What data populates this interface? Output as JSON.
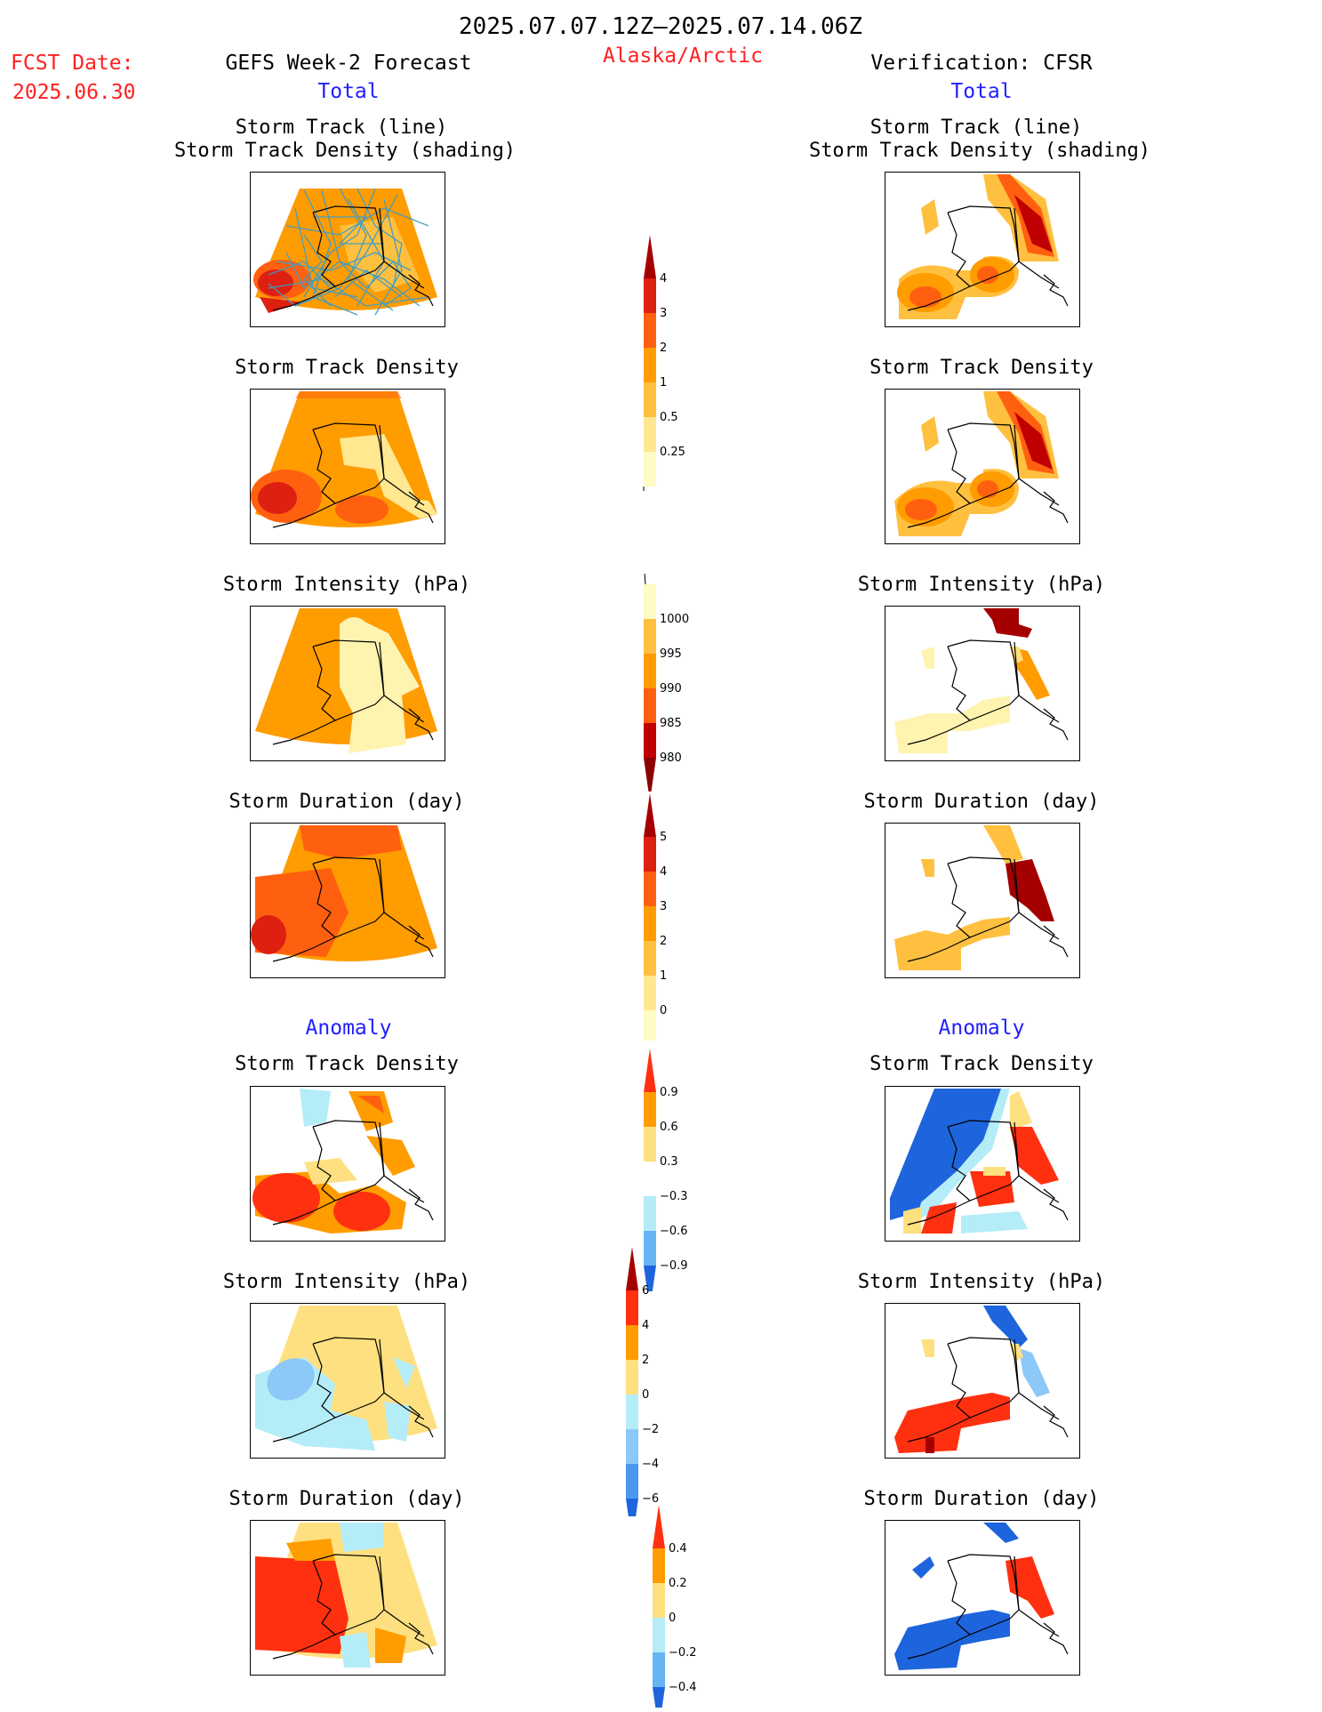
{
  "header": {
    "period": "2025.07.07.12Z–2025.07.14.06Z",
    "fcst_label": "FCST Date:",
    "fcst_date": "2025.06.30",
    "forecast_title": "GEFS Week-2 Forecast",
    "region": "Alaska/Arctic",
    "verification_title": "Verification: CFSR"
  },
  "sections": {
    "total": "Total",
    "anomaly": "Anomaly"
  },
  "titles": {
    "track_line": "Storm Track (line)",
    "track_shading": "Storm Track Density (shading)",
    "density": "Storm Track Density",
    "intensity": "Storm Intensity (hPa)",
    "duration": "Storm Duration (day)"
  },
  "colorbars": [
    {
      "id": "total-density",
      "arrow": "top",
      "labels": [
        "4",
        "3",
        "2",
        "1",
        "0.5",
        "0.25"
      ],
      "colors": [
        "#a50000",
        "#dd2010",
        "#ff6010",
        "#ff9c00",
        "#ffc040",
        "#ffe890",
        "#fffbc4"
      ]
    },
    {
      "id": "total-intensity",
      "arrow": "bottom",
      "labels": [
        "1000",
        "995",
        "990",
        "985",
        "980"
      ],
      "colors": [
        "#fffbc4",
        "#ffc040",
        "#ff9c00",
        "#ff6010",
        "#c00000",
        "#8b0000"
      ]
    },
    {
      "id": "total-duration",
      "arrow": "top",
      "labels": [
        "5",
        "4",
        "3",
        "2",
        "1",
        "0"
      ],
      "colors": [
        "#a50000",
        "#dd2010",
        "#ff6010",
        "#ff9c00",
        "#ffc040",
        "#ffe890",
        "#fffbc4"
      ]
    },
    {
      "id": "anom-density",
      "arrow": "both",
      "labels": [
        "0.9",
        "0.6",
        "0.3",
        "−0.3",
        "−0.6",
        "−0.9"
      ],
      "colors": [
        "#ff3010",
        "#ff9c00",
        "#ffe080",
        "#ffffff",
        "#b4ecf8",
        "#66b4f4",
        "#1e64dc"
      ]
    },
    {
      "id": "anom-intensity",
      "arrow": "both",
      "labels": [
        "6",
        "4",
        "2",
        "0",
        "−2",
        "−4",
        "−6"
      ],
      "colors": [
        "#a50000",
        "#ff3010",
        "#ff9c00",
        "#ffe080",
        "#b4ecf8",
        "#8cc8f8",
        "#4c98f0",
        "#1e64dc"
      ]
    },
    {
      "id": "anom-duration",
      "arrow": "both",
      "labels": [
        "0.4",
        "0.2",
        "0",
        "−0.2",
        "−0.4"
      ],
      "colors": [
        "#ff3010",
        "#ff9c00",
        "#ffe080",
        "#b4ecf8",
        "#66b4f4",
        "#1e64dc"
      ]
    }
  ]
}
